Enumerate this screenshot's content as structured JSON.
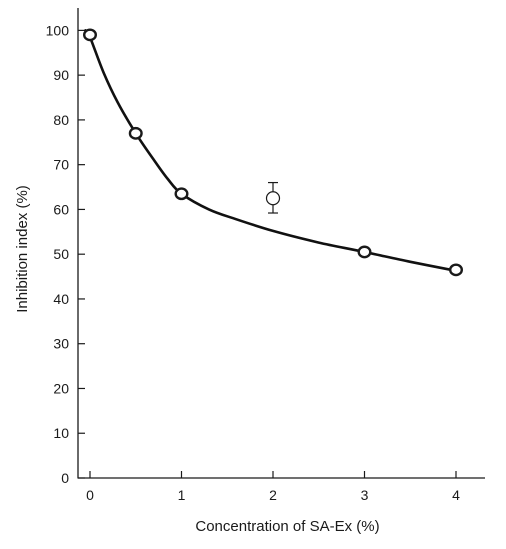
{
  "chart_data": {
    "type": "scatter",
    "title": "",
    "xlabel": "Concentration of SA-Ex (%)",
    "ylabel": "Inhibition index (%)",
    "xlim": [
      -0.15,
      4.3
    ],
    "ylim": [
      0,
      105
    ],
    "x_ticks": [
      0,
      1,
      2,
      3,
      4
    ],
    "y_ticks": [
      0,
      10,
      20,
      30,
      40,
      50,
      60,
      70,
      80,
      90,
      100
    ],
    "grid": false,
    "legend": "none",
    "series": [
      {
        "marker": "open-circle",
        "points": [
          {
            "x": 0,
            "y": 99
          },
          {
            "x": 0.5,
            "y": 77
          },
          {
            "x": 1,
            "y": 63.5
          },
          {
            "x": 3,
            "y": 50.5
          },
          {
            "x": 4,
            "y": 46.5
          }
        ]
      },
      {
        "marker": "open-circle",
        "points": [
          {
            "x": 2,
            "y": 62.5,
            "error_low": 59.2,
            "error_high": 66
          }
        ]
      }
    ],
    "fit_curve": [
      [
        -0.05,
        100
      ],
      [
        0,
        98.5
      ],
      [
        0.15,
        90.5
      ],
      [
        0.3,
        84
      ],
      [
        0.5,
        77
      ],
      [
        0.7,
        71
      ],
      [
        0.85,
        66.8
      ],
      [
        1,
        63.5
      ],
      [
        1.3,
        60
      ],
      [
        1.6,
        57.8
      ],
      [
        2,
        55.2
      ],
      [
        2.5,
        52.6
      ],
      [
        3,
        50.5
      ],
      [
        3.5,
        48.3
      ],
      [
        4,
        46.3
      ]
    ],
    "colors": {
      "line": "#111111",
      "marker_fill": "#ffffff",
      "axis": "#1a1a1a"
    }
  }
}
